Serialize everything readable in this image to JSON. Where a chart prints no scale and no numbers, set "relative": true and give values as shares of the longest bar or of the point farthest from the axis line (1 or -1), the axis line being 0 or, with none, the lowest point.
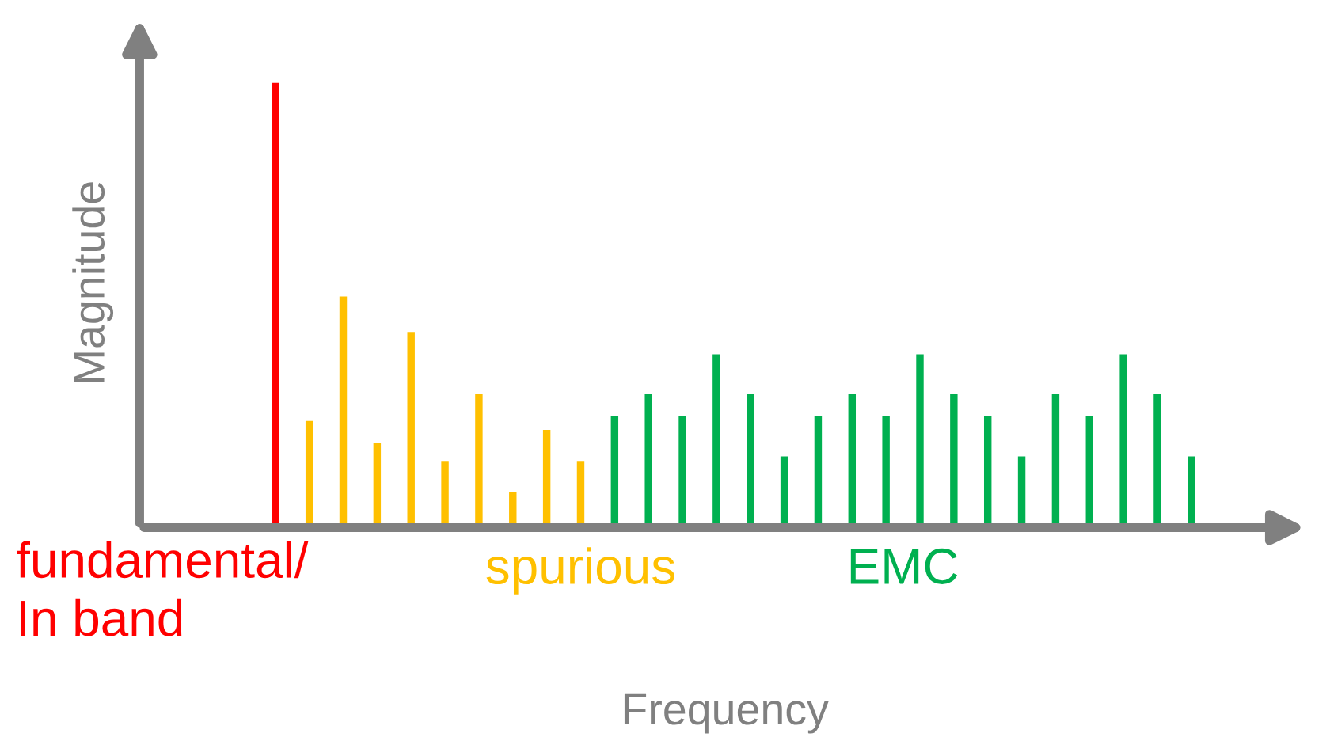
{
  "chart_data": {
    "type": "bar",
    "relative": true,
    "xlabel": "Frequency",
    "ylabel": "Magnitude",
    "categories": [
      null,
      null,
      null,
      null,
      null,
      null,
      null,
      null,
      null,
      null,
      null,
      null,
      null,
      null,
      null,
      null,
      null,
      null,
      null,
      null,
      null,
      null,
      null,
      null,
      null,
      null,
      null,
      null
    ],
    "values": [
      1,
      0.24,
      0.52,
      0.19,
      0.44,
      0.15,
      0.3,
      0.08,
      0.22,
      0.15,
      0.25,
      0.3,
      0.25,
      0.39,
      0.3,
      0.16,
      0.25,
      0.3,
      0.25,
      0.39,
      0.3,
      0.25,
      0.16,
      0.3,
      0.25,
      0.39,
      0.3,
      0.16
    ],
    "colors": [
      "#ff0000",
      "#ffc000",
      "#ffc000",
      "#ffc000",
      "#ffc000",
      "#ffc000",
      "#ffc000",
      "#ffc000",
      "#ffc000",
      "#ffc000",
      "#00b050",
      "#00b050",
      "#00b050",
      "#00b050",
      "#00b050",
      "#00b050",
      "#00b050",
      "#00b050",
      "#00b050",
      "#00b050",
      "#00b050",
      "#00b050",
      "#00b050",
      "#00b050",
      "#00b050",
      "#00b050",
      "#00b050",
      "#00b050"
    ],
    "annotations": [
      "fundamental/\nIn band",
      "spurious",
      "EMC"
    ]
  }
}
